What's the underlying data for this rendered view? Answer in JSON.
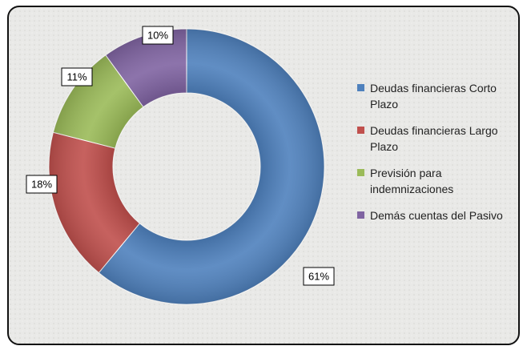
{
  "chart_data": {
    "type": "donut",
    "categories": [
      "Deudas financieras Corto Plazo",
      "Deudas financieras Largo Plazo",
      "Previsión para indemnizaciones",
      "Demás cuentas del Pasivo"
    ],
    "values": [
      61,
      18,
      11,
      10
    ],
    "value_labels": [
      "61%",
      "18%",
      "11%",
      "10%"
    ],
    "colors": [
      "#4f81bd",
      "#c0504d",
      "#9bbb59",
      "#8064a2"
    ],
    "legend": "right"
  }
}
